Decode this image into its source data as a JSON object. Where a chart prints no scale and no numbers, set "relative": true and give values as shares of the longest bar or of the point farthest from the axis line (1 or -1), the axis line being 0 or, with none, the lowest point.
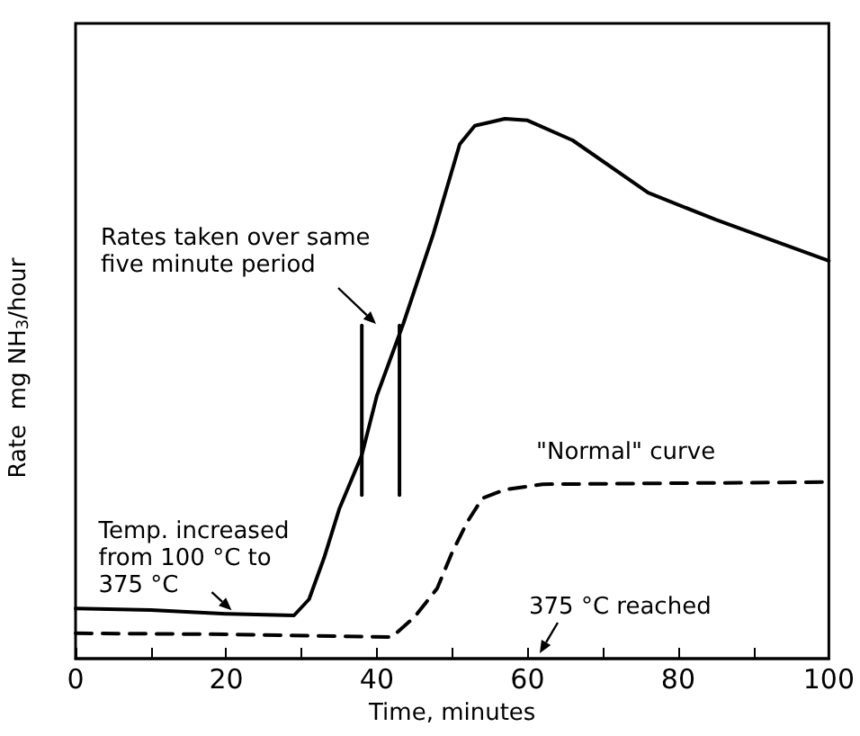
{
  "chart_data": {
    "type": "line",
    "relative": true,
    "xlabel": "Time, minutes",
    "ylabel": "Rate  mg NH$_{3}$/hour",
    "xlim": [
      0,
      100
    ],
    "xticks": [
      0,
      {
        "value": 10,
        "label": null
      },
      20,
      {
        "value": 30,
        "label": null
      },
      40,
      {
        "value": 50,
        "label": null
      },
      60,
      {
        "value": 70,
        "label": null
      },
      80,
      {
        "value": 90,
        "label": null
      },
      100
    ],
    "tick_labels": "x",
    "marker": "none",
    "series": [
      {
        "color": "#000000",
        "line_style": "solid",
        "x": [
          0,
          10,
          20,
          29,
          31,
          33,
          35,
          38,
          40,
          43.5,
          47.5,
          51,
          53,
          57,
          60,
          66,
          76,
          85,
          100
        ],
        "values": [
          0.093,
          0.09,
          0.083,
          0.08,
          0.11,
          0.187,
          0.277,
          0.377,
          0.487,
          0.62,
          0.787,
          0.953,
          0.987,
          1.0,
          0.997,
          0.96,
          0.863,
          0.813,
          0.737
        ]
      },
      {
        "color": "#000000",
        "line_style": "dashed",
        "x": [
          0,
          20,
          42,
          45,
          48,
          50,
          52,
          54,
          57,
          62,
          80,
          100
        ],
        "values": [
          0.047,
          0.045,
          0.04,
          0.077,
          0.13,
          0.197,
          0.253,
          0.297,
          0.313,
          0.323,
          0.325,
          0.327
        ]
      },
      {
        "color": "#000000",
        "line_style": "solid",
        "x": [
          38,
          38
        ],
        "values": [
          0.303,
          0.617
        ]
      },
      {
        "color": "#000000",
        "line_style": "solid",
        "x": [
          43,
          43
        ],
        "values": [
          0.303,
          0.617
        ]
      }
    ],
    "annotations": [
      "Rates taken over same\nfive minute period",
      {
        "text": "\"Normal\" curve",
        "x": 75,
        "y": 0.327
      },
      {
        "text": "Temp. increased\nfrom 100 °C to\n375 °C",
        "x": 20,
        "y": 0.083
      },
      "375 °C reached"
    ]
  }
}
